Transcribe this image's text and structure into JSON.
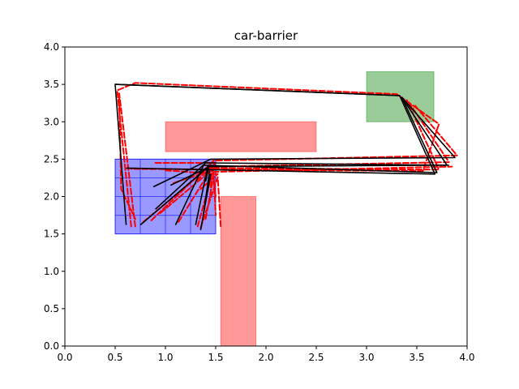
{
  "chart_data": {
    "type": "line",
    "title": "car-barrier",
    "xlabel": "",
    "ylabel": "",
    "xlim": [
      0.0,
      4.0
    ],
    "ylim": [
      0.0,
      4.0
    ],
    "grid": false,
    "x_ticks": [
      "0.0",
      "0.5",
      "1.0",
      "1.5",
      "2.0",
      "2.5",
      "3.0",
      "3.5",
      "4.0"
    ],
    "y_ticks": [
      "0.0",
      "0.5",
      "1.0",
      "1.5",
      "2.0",
      "2.5",
      "3.0",
      "3.5",
      "4.0"
    ],
    "regions": {
      "start_region": {
        "x": [
          0.5,
          1.5
        ],
        "y": [
          1.5,
          2.5
        ],
        "color": "#0000ff",
        "grid_x": [
          0.5,
          0.75,
          1.0,
          1.25,
          1.5
        ],
        "grid_y": [
          1.5,
          1.75,
          2.0,
          2.25,
          2.5
        ]
      },
      "goal_region": {
        "x": [
          3.0,
          3.67
        ],
        "y": [
          3.0,
          3.67
        ],
        "color": "#008000"
      },
      "obstacles": [
        {
          "x": [
            1.0,
            2.5
          ],
          "y": [
            2.6,
            3.0
          ],
          "color": "#ff0000"
        },
        {
          "x": [
            1.55,
            1.9
          ],
          "y": [
            0.0,
            2.0
          ],
          "color": "#ff0000"
        }
      ]
    },
    "series_styles": {
      "reference": {
        "color": "#000000",
        "dash": "solid"
      },
      "tracked": {
        "color": "#ff0000",
        "dash": "dashed"
      }
    },
    "corner_path": [
      [
        0.5,
        3.5
      ],
      [
        3.33,
        3.35
      ]
    ],
    "reference_paths": [
      [
        [
          0.61,
          1.62
        ],
        [
          0.5,
          3.5
        ],
        [
          3.33,
          3.35
        ],
        [
          3.68,
          2.3
        ],
        [
          0.61,
          2.38
        ]
      ],
      [
        [
          0.88,
          2.13
        ],
        [
          1.45,
          2.5
        ],
        [
          3.88,
          2.52
        ],
        [
          3.35,
          3.33
        ]
      ],
      [
        [
          0.9,
          1.83
        ],
        [
          1.4,
          2.45
        ],
        [
          3.8,
          2.42
        ],
        [
          3.35,
          3.33
        ]
      ],
      [
        [
          1.1,
          1.62
        ],
        [
          1.38,
          2.42
        ],
        [
          3.7,
          2.32
        ],
        [
          3.35,
          3.33
        ]
      ],
      [
        [
          1.3,
          1.62
        ],
        [
          1.42,
          2.4
        ],
        [
          3.82,
          2.42
        ]
      ],
      [
        [
          1.38,
          1.78
        ],
        [
          1.44,
          2.35
        ]
      ],
      [
        [
          1.35,
          1.55
        ],
        [
          1.45,
          2.3
        ]
      ],
      [
        [
          0.75,
          1.62
        ],
        [
          1.43,
          2.4
        ],
        [
          1.4,
          2.2
        ]
      ],
      [
        [
          1.05,
          2.15
        ],
        [
          1.41,
          2.38
        ]
      ]
    ],
    "tracked_paths": [
      [
        [
          0.66,
          1.6
        ],
        [
          0.52,
          3.42
        ],
        [
          0.7,
          3.52
        ],
        [
          3.3,
          3.37
        ],
        [
          3.72,
          2.97
        ],
        [
          3.56,
          2.34
        ],
        [
          0.66,
          2.37
        ]
      ],
      [
        [
          0.7,
          1.6
        ],
        [
          0.54,
          3.38
        ],
        [
          0.56,
          2.1
        ],
        [
          0.7,
          1.7
        ]
      ],
      [
        [
          0.86,
          1.68
        ],
        [
          1.48,
          2.48
        ],
        [
          3.9,
          2.55
        ],
        [
          3.48,
          3.22
        ]
      ],
      [
        [
          0.95,
          1.78
        ],
        [
          1.5,
          2.4
        ],
        [
          3.82,
          2.46
        ],
        [
          3.42,
          3.26
        ]
      ],
      [
        [
          1.13,
          1.66
        ],
        [
          1.46,
          2.38
        ],
        [
          3.72,
          2.36
        ],
        [
          3.4,
          3.29
        ]
      ],
      [
        [
          1.32,
          1.6
        ],
        [
          1.47,
          2.33
        ],
        [
          3.85,
          2.4
        ]
      ],
      [
        [
          1.4,
          1.7
        ],
        [
          1.48,
          2.28
        ],
        [
          1.5,
          1.75
        ]
      ],
      [
        [
          1.35,
          1.58
        ],
        [
          1.52,
          2.26
        ],
        [
          1.55,
          1.6
        ]
      ],
      [
        [
          0.78,
          1.66
        ],
        [
          1.46,
          2.42
        ],
        [
          1.45,
          2.05
        ]
      ],
      [
        [
          1.08,
          2.18
        ],
        [
          1.47,
          2.36
        ],
        [
          1.5,
          2.0
        ]
      ],
      [
        [
          0.9,
          2.45
        ],
        [
          1.5,
          2.45
        ],
        [
          1.3,
          2.2
        ]
      ],
      [
        [
          1.0,
          2.35
        ],
        [
          1.52,
          2.3
        ],
        [
          1.35,
          2.1
        ]
      ]
    ]
  }
}
